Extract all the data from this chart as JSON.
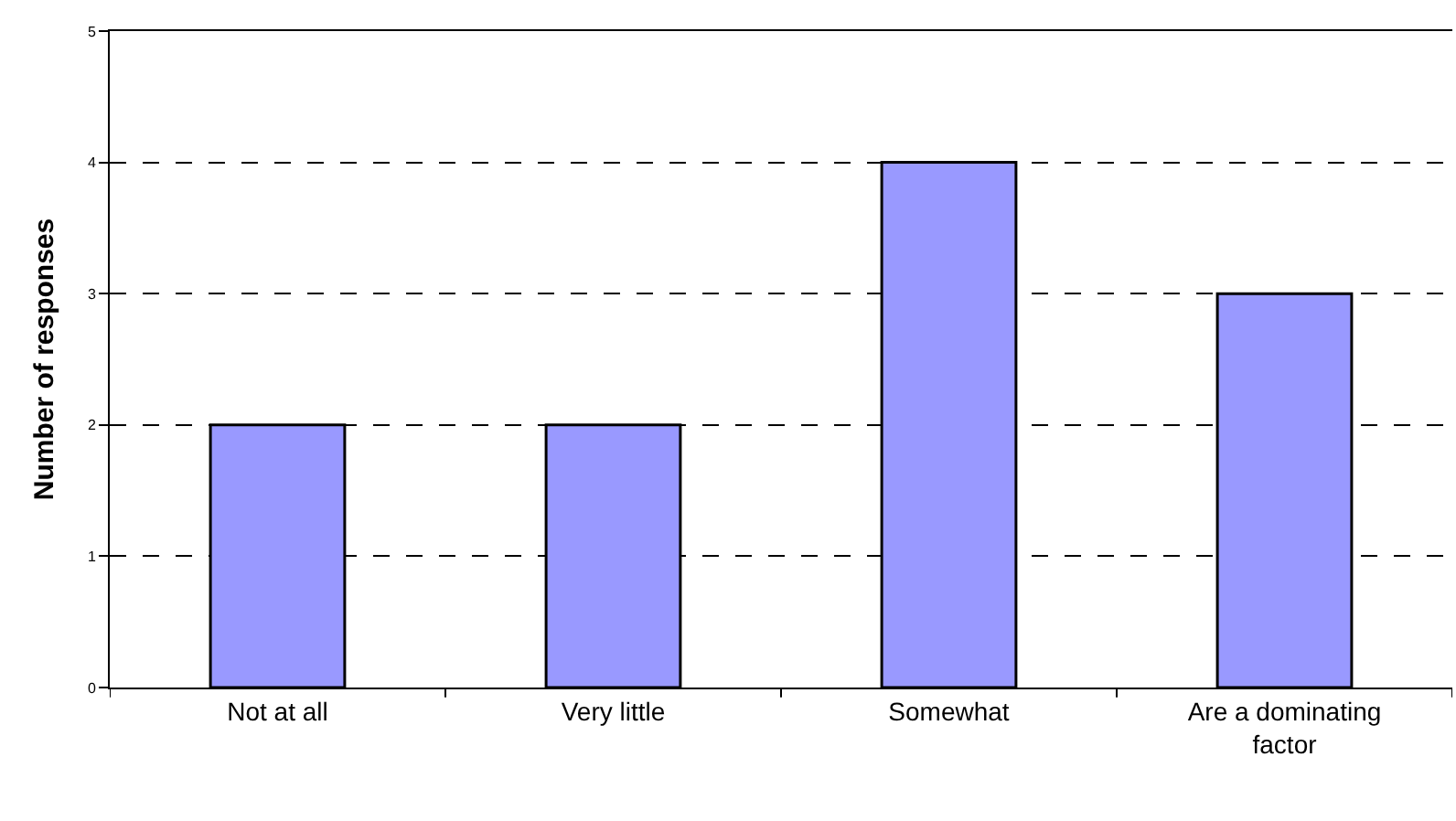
{
  "chart_data": {
    "type": "bar",
    "ylabel": "Number of responses",
    "categories": [
      "Not at all",
      "Very little",
      "Somewhat",
      "Are a dominating factor"
    ],
    "values": [
      2,
      2,
      4,
      3
    ],
    "color": "#9999ff",
    "ylim": [
      0,
      5
    ],
    "yticks": [
      0,
      1,
      2,
      3,
      4,
      5
    ],
    "grid": "y"
  }
}
